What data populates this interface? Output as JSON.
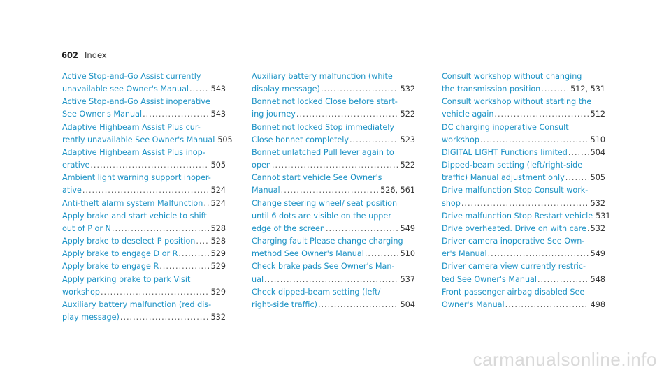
{
  "header": {
    "page_number": "602",
    "section": "Index"
  },
  "columns": [
    [
      {
        "lines": [
          "Active Stop-and-Go Assist currently",
          "unavailable see Owner's Manual"
        ],
        "page": "543"
      },
      {
        "lines": [
          "Active Stop-and-Go Assist inoperative",
          "See Owner's Manual"
        ],
        "page": "543"
      },
      {
        "lines": [
          "Adaptive Highbeam Assist Plus cur-",
          "rently unavailable See Owner's Manual"
        ],
        "page": "505"
      },
      {
        "lines": [
          "Adaptive Highbeam Assist Plus inop-",
          "erative"
        ],
        "page": "505"
      },
      {
        "lines": [
          "Ambient light warning support inoper-",
          "ative"
        ],
        "page": "524"
      },
      {
        "lines": [
          "Anti-theft alarm system Malfunction"
        ],
        "page": "524"
      },
      {
        "lines": [
          "Apply brake and start vehicle to shift",
          "out of P or N"
        ],
        "page": "528"
      },
      {
        "lines": [
          "Apply brake to deselect P position"
        ],
        "page": "528"
      },
      {
        "lines": [
          "Apply brake to engage D or R"
        ],
        "page": "529"
      },
      {
        "lines": [
          "Apply brake to engage R"
        ],
        "page": "529"
      },
      {
        "lines": [
          "Apply parking brake to park Visit",
          "workshop"
        ],
        "page": "529"
      },
      {
        "lines": [
          "Auxiliary battery malfunction (red dis-",
          "play message)"
        ],
        "page": "532"
      }
    ],
    [
      {
        "lines": [
          "Auxiliary battery malfunction (white",
          "display message)"
        ],
        "page": "532"
      },
      {
        "lines": [
          "Bonnet not locked Close before start-",
          "ing journey"
        ],
        "page": "522"
      },
      {
        "lines": [
          "Bonnet not locked Stop immediately",
          "Close bonnet completely"
        ],
        "page": "523"
      },
      {
        "lines": [
          "Bonnet unlatched Pull lever again to",
          "open"
        ],
        "page": "522"
      },
      {
        "lines": [
          "Cannot start vehicle See Owner's",
          "Manual"
        ],
        "page": "526, 561"
      },
      {
        "lines": [
          "Change steering wheel/ seat position",
          "until 6 dots are visible on the upper",
          "edge of the screen"
        ],
        "page": "549"
      },
      {
        "lines": [
          "Charging fault Please change charging",
          "method See Owner's Manual"
        ],
        "page": "510"
      },
      {
        "lines": [
          "Check brake pads See Owner's Man-",
          "ual"
        ],
        "page": "537"
      },
      {
        "lines": [
          "Check dipped-beam setting (left/",
          "right-side traffic)"
        ],
        "page": "504"
      }
    ],
    [
      {
        "lines": [
          "Consult workshop without changing",
          "the transmission position"
        ],
        "page": "512, 531"
      },
      {
        "lines": [
          "Consult workshop without starting the",
          "vehicle again"
        ],
        "page": "512"
      },
      {
        "lines": [
          "DC charging inoperative Consult",
          "workshop"
        ],
        "page": "510"
      },
      {
        "lines": [
          "DIGITAL LIGHT Functions limited"
        ],
        "page": "504"
      },
      {
        "lines": [
          "Dipped-beam setting (left/right-side",
          "traffic) Manual adjustment only"
        ],
        "page": "505"
      },
      {
        "lines": [
          "Drive malfunction Stop Consult work-",
          "shop"
        ],
        "page": "532"
      },
      {
        "lines": [
          "Drive malfunction Stop Restart vehicle"
        ],
        "page": "531"
      },
      {
        "lines": [
          "Drive overheated. Drive on with care"
        ],
        "page": "532"
      },
      {
        "lines": [
          "Driver camera inoperative See Own-",
          "er's Manual"
        ],
        "page": "549"
      },
      {
        "lines": [
          "Driver camera view currently restric-",
          "ted See Owner's Manual"
        ],
        "page": "548"
      },
      {
        "lines": [
          "Front passenger airbag disabled See",
          "Owner's Manual"
        ],
        "page": "498"
      }
    ]
  ],
  "watermark": "carmanualsonline.info"
}
